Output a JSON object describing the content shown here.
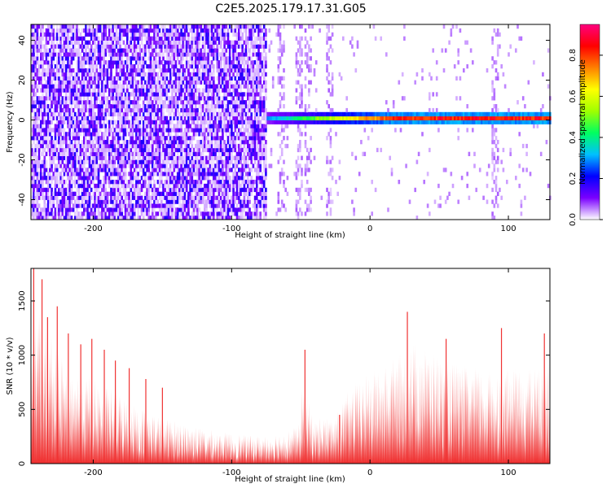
{
  "figure_title": "C2E5.2025.179.17.31.G05",
  "chart_data": [
    {
      "type": "heatmap",
      "title": "C2E5.2025.179.17.31.G05",
      "xlabel": "Height of straight line (km)",
      "ylabel": "Frequency (Hz)",
      "xlim": [
        -245,
        130
      ],
      "ylim": [
        -50,
        48
      ],
      "xticks": [
        -200,
        -100,
        0,
        100
      ],
      "yticks": [
        -40,
        -20,
        0,
        20,
        40
      ],
      "colorbar": {
        "label": "Normalized spectral amplitude",
        "range": [
          0.0,
          0.95
        ],
        "ticks": [
          0.0,
          0.2,
          0.4,
          0.6,
          0.8
        ],
        "tick_labels": [
          "0.0",
          "0.2",
          "0.4",
          "0.6",
          "0.8"
        ],
        "colors": [
          "#ffffff",
          "#7a00ff",
          "#0000ff",
          "#00c0ff",
          "#00ff60",
          "#a0ff00",
          "#ffff00",
          "#ff8000",
          "#ff0000",
          "#ff007f"
        ]
      },
      "features": [
        {
          "description": "broadband noise",
          "x_range": [
            -245,
            -75
          ],
          "y_range": [
            -50,
            48
          ],
          "amplitude": 0.1
        },
        {
          "description": "noise stripes",
          "x_values": [
            -65,
            -52,
            -45,
            -30,
            90
          ],
          "amplitude": 0.05
        },
        {
          "description": "narrow signal line at 0 Hz",
          "x_range": [
            -75,
            130
          ],
          "y": 0,
          "amplitude_start": 0.3,
          "amplitude_end": 0.9
        }
      ]
    },
    {
      "type": "area",
      "xlabel": "Height of straight line (km)",
      "ylabel": "SNR (10 * v/v)",
      "xlim": [
        -245,
        130
      ],
      "ylim": [
        0,
        1800
      ],
      "xticks": [
        -200,
        -100,
        0,
        100
      ],
      "yticks": [
        0,
        500,
        1000,
        1500
      ],
      "color": "#f03232",
      "series": [
        {
          "x": [
            -245,
            -240,
            -230,
            -220,
            -210,
            -200,
            -190,
            -180,
            -170,
            -160,
            -150,
            -140,
            -130,
            -120,
            -110,
            -100,
            -90,
            -80,
            -70,
            -60,
            -55,
            -50,
            -48,
            -45,
            -40,
            -35,
            -30,
            -25,
            -20,
            -15,
            -10,
            -5,
            0,
            5,
            10,
            15,
            20,
            25,
            30,
            35,
            40,
            45,
            50,
            55,
            60,
            65,
            70,
            75,
            80,
            85,
            90,
            95,
            100,
            105,
            110,
            115,
            120,
            125,
            130
          ],
          "envelope": [
            900,
            1550,
            1200,
            900,
            850,
            800,
            720,
            650,
            560,
            500,
            440,
            400,
            360,
            330,
            300,
            290,
            270,
            260,
            280,
            300,
            340,
            380,
            1000,
            600,
            400,
            450,
            430,
            450,
            580,
            700,
            750,
            800,
            850,
            880,
            900,
            950,
            1000,
            1050,
            1100,
            1150,
            1080,
            1050,
            1000,
            970,
            950,
            920,
            900,
            900,
            880,
            860,
            880,
            900,
            900,
            880,
            870,
            880,
            900,
            920,
            940
          ],
          "spikes": [
            {
              "x": -243,
              "y": 1800
            },
            {
              "x": -237,
              "y": 1700
            },
            {
              "x": -233,
              "y": 1350
            },
            {
              "x": -226,
              "y": 1450
            },
            {
              "x": -218,
              "y": 1200
            },
            {
              "x": -209,
              "y": 1100
            },
            {
              "x": -201,
              "y": 1150
            },
            {
              "x": -192,
              "y": 1050
            },
            {
              "x": -184,
              "y": 950
            },
            {
              "x": -174,
              "y": 880
            },
            {
              "x": -162,
              "y": 780
            },
            {
              "x": -150,
              "y": 700
            },
            {
              "x": -47,
              "y": 1050
            },
            {
              "x": -22,
              "y": 450
            },
            {
              "x": 27,
              "y": 1400
            },
            {
              "x": 55,
              "y": 1150
            },
            {
              "x": 95,
              "y": 1250
            },
            {
              "x": 126,
              "y": 1200
            }
          ]
        }
      ]
    }
  ]
}
